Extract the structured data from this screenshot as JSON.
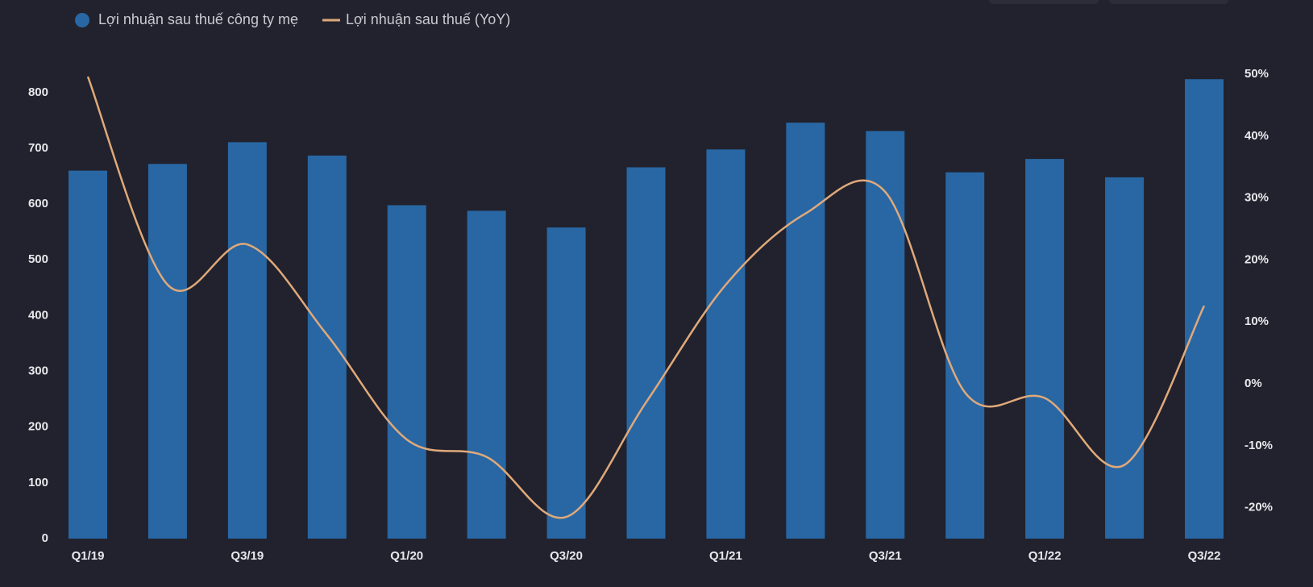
{
  "chart_data": {
    "type": "bar_line",
    "categories": [
      "Q1/19",
      null,
      "Q3/19",
      null,
      "Q1/20",
      null,
      "Q3/20",
      null,
      "Q1/21",
      null,
      "Q3/21",
      null,
      "Q1/22",
      null,
      "Q3/22"
    ],
    "series": [
      {
        "name": "Lợi nhuận sau thuế công ty mẹ",
        "type": "bar",
        "color": "#2867a4",
        "values": [
          660,
          672,
          711,
          687,
          598,
          588,
          558,
          666,
          698,
          746,
          731,
          657,
          681,
          648,
          824
        ]
      },
      {
        "name": "Lợi nhuận sau thuế (YoY)",
        "type": "line",
        "axis": "y2",
        "color": "#e0a97a",
        "values": [
          49.6,
          16,
          22.5,
          7.9,
          -9,
          -11.8,
          -21.5,
          -3,
          16,
          27.5,
          31,
          -1.4,
          -2.3,
          -13.1,
          12.6
        ]
      }
    ],
    "ylim": [
      0,
      833
    ],
    "yticks": [
      0,
      100,
      200,
      300,
      400,
      500,
      600,
      700,
      800
    ],
    "y2lim": [
      -25,
      50
    ],
    "y2ticks": [
      {
        "value": -20,
        "label": "-20%"
      },
      {
        "value": -10,
        "label": "-10%"
      },
      {
        "value": 0,
        "label": "0%"
      },
      {
        "value": 10,
        "label": "10%"
      },
      {
        "value": 20,
        "label": "20%"
      },
      {
        "value": 30,
        "label": "30%"
      },
      {
        "value": 40,
        "label": "40%"
      },
      {
        "value": 50,
        "label": "50%"
      }
    ]
  }
}
